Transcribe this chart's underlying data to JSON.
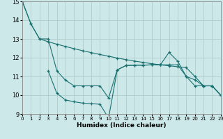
{
  "xlabel": "Humidex (Indice chaleur)",
  "bg_color": "#cce8e8",
  "grid_color": "#b0cccc",
  "line_color": "#1a7070",
  "xlim": [
    0,
    23
  ],
  "ylim": [
    9,
    15
  ],
  "yticks": [
    9,
    10,
    11,
    12,
    13,
    14,
    15
  ],
  "xticks": [
    0,
    1,
    2,
    3,
    4,
    5,
    6,
    7,
    8,
    9,
    10,
    11,
    12,
    13,
    14,
    15,
    16,
    17,
    18,
    19,
    20,
    21,
    22,
    23
  ],
  "l1x": [
    0,
    1,
    2,
    3,
    4,
    5,
    6,
    7,
    8,
    9,
    10,
    11,
    12,
    13,
    14,
    15,
    16,
    17,
    18,
    19,
    20,
    21,
    22,
    23
  ],
  "l1y": [
    15.0,
    13.8,
    13.0,
    12.85,
    12.72,
    12.6,
    12.48,
    12.37,
    12.27,
    12.17,
    12.08,
    11.98,
    11.9,
    11.82,
    11.75,
    11.68,
    11.62,
    11.57,
    11.52,
    11.47,
    11.0,
    10.5,
    10.5,
    10.0
  ],
  "l2x": [
    0,
    1,
    2,
    3,
    4,
    5,
    6,
    7,
    8,
    9,
    10,
    11,
    12,
    13,
    14,
    15,
    16,
    17,
    18,
    19,
    20,
    21,
    22,
    23
  ],
  "l2y": [
    15.0,
    13.8,
    13.0,
    13.0,
    11.3,
    10.8,
    10.5,
    10.5,
    10.5,
    10.5,
    9.85,
    11.35,
    11.58,
    11.6,
    11.6,
    11.62,
    11.62,
    11.62,
    11.62,
    11.0,
    10.5,
    10.5,
    10.5,
    10.0
  ],
  "l3x": [
    3,
    4,
    5,
    6,
    7,
    8,
    9,
    10,
    11,
    12,
    13,
    14,
    15,
    16,
    17,
    18,
    19,
    20,
    21,
    22,
    23
  ],
  "l3y": [
    11.3,
    10.1,
    9.75,
    9.65,
    9.58,
    9.55,
    9.52,
    8.78,
    11.35,
    11.58,
    11.6,
    11.6,
    11.62,
    11.62,
    12.28,
    11.82,
    11.0,
    10.82,
    10.5,
    10.5,
    10.0
  ]
}
